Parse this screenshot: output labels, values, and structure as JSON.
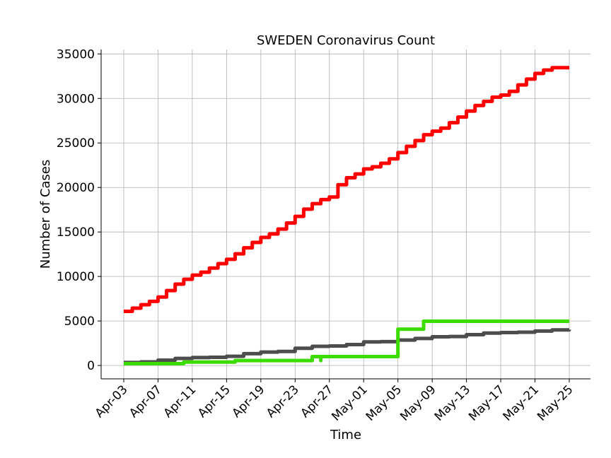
{
  "chart_data": {
    "type": "line",
    "title": "SWEDEN Coronavirus Count",
    "xlabel": "Time",
    "ylabel": "Number of Cases",
    "x_range": [
      "2020-04-03",
      "2020-05-25"
    ],
    "ylim": [
      -1500,
      35500
    ],
    "grid": true,
    "xticks": [
      {
        "date": "2020-04-03",
        "label": "Apr-03"
      },
      {
        "date": "2020-04-07",
        "label": "Apr-07"
      },
      {
        "date": "2020-04-11",
        "label": "Apr-11"
      },
      {
        "date": "2020-04-15",
        "label": "Apr-15"
      },
      {
        "date": "2020-04-19",
        "label": "Apr-19"
      },
      {
        "date": "2020-04-23",
        "label": "Apr-23"
      },
      {
        "date": "2020-04-27",
        "label": "Apr-27"
      },
      {
        "date": "2020-05-01",
        "label": "May-01"
      },
      {
        "date": "2020-05-05",
        "label": "May-05"
      },
      {
        "date": "2020-05-09",
        "label": "May-09"
      },
      {
        "date": "2020-05-13",
        "label": "May-13"
      },
      {
        "date": "2020-05-17",
        "label": "May-17"
      },
      {
        "date": "2020-05-21",
        "label": "May-21"
      },
      {
        "date": "2020-05-25",
        "label": "May-25"
      }
    ],
    "yticks": [
      0,
      5000,
      10000,
      15000,
      20000,
      25000,
      30000,
      35000
    ],
    "series": [
      {
        "color": "#ff0000",
        "x": [
          "2020-04-03",
          "2020-04-04",
          "2020-04-05",
          "2020-04-06",
          "2020-04-07",
          "2020-04-08",
          "2020-04-09",
          "2020-04-10",
          "2020-04-11",
          "2020-04-12",
          "2020-04-13",
          "2020-04-14",
          "2020-04-15",
          "2020-04-16",
          "2020-04-17",
          "2020-04-18",
          "2020-04-19",
          "2020-04-20",
          "2020-04-21",
          "2020-04-22",
          "2020-04-23",
          "2020-04-24",
          "2020-04-25",
          "2020-04-26",
          "2020-04-27",
          "2020-04-28",
          "2020-04-29",
          "2020-04-30",
          "2020-05-01",
          "2020-05-02",
          "2020-05-03",
          "2020-05-04",
          "2020-05-05",
          "2020-05-06",
          "2020-05-07",
          "2020-05-08",
          "2020-05-09",
          "2020-05-10",
          "2020-05-11",
          "2020-05-12",
          "2020-05-13",
          "2020-05-14",
          "2020-05-15",
          "2020-05-16",
          "2020-05-17",
          "2020-05-18",
          "2020-05-19",
          "2020-05-20",
          "2020-05-21",
          "2020-05-22",
          "2020-05-23",
          "2020-05-24",
          "2020-05-25"
        ],
        "values": [
          6078,
          6443,
          6830,
          7206,
          7693,
          8419,
          9141,
          9685,
          10151,
          10483,
          10948,
          11445,
          11927,
          12540,
          13216,
          13822,
          14385,
          14777,
          15322,
          16004,
          16755,
          17567,
          18177,
          18640,
          18926,
          20302,
          21092,
          21520,
          22082,
          22317,
          22721,
          23216,
          23918,
          24623,
          25265,
          25921,
          26322,
          26670,
          27272,
          27909,
          28582,
          29207,
          29677,
          30143,
          30377,
          30799,
          31523,
          32172,
          32809,
          33188,
          33459,
          33459,
          33459
        ]
      },
      {
        "color": "#4d4d4d",
        "x": [
          "2020-04-03",
          "2020-04-05",
          "2020-04-07",
          "2020-04-09",
          "2020-04-11",
          "2020-04-13",
          "2020-04-15",
          "2020-04-17",
          "2020-04-19",
          "2020-04-21",
          "2020-04-23",
          "2020-04-25",
          "2020-04-27",
          "2020-04-29",
          "2020-05-01",
          "2020-05-03",
          "2020-05-05",
          "2020-05-07",
          "2020-05-09",
          "2020-05-11",
          "2020-05-13",
          "2020-05-15",
          "2020-05-17",
          "2020-05-19",
          "2020-05-21",
          "2020-05-23",
          "2020-05-25"
        ],
        "values": [
          333,
          401,
          591,
          793,
          887,
          919,
          1033,
          1333,
          1511,
          1580,
          1937,
          2152,
          2194,
          2355,
          2653,
          2679,
          2854,
          3040,
          3220,
          3256,
          3460,
          3646,
          3698,
          3743,
          3871,
          3998,
          4029
        ]
      },
      {
        "color": "#3cdc00",
        "x": [
          "2020-04-03",
          "2020-04-09",
          "2020-04-10",
          "2020-04-16",
          "2020-04-16",
          "2020-04-25",
          "2020-04-25",
          "2020-04-26",
          "2020-04-26",
          "2020-04-26",
          "2020-05-05",
          "2020-05-05",
          "2020-05-06",
          "2020-05-06",
          "2020-05-07",
          "2020-05-07",
          "2020-05-08",
          "2020-05-25"
        ],
        "values": [
          205,
          205,
          381,
          381,
          550,
          550,
          1005,
          1005,
          550,
          1005,
          1005,
          4074,
          4074,
          4074,
          4074,
          4074,
          4971,
          4971
        ]
      }
    ]
  }
}
